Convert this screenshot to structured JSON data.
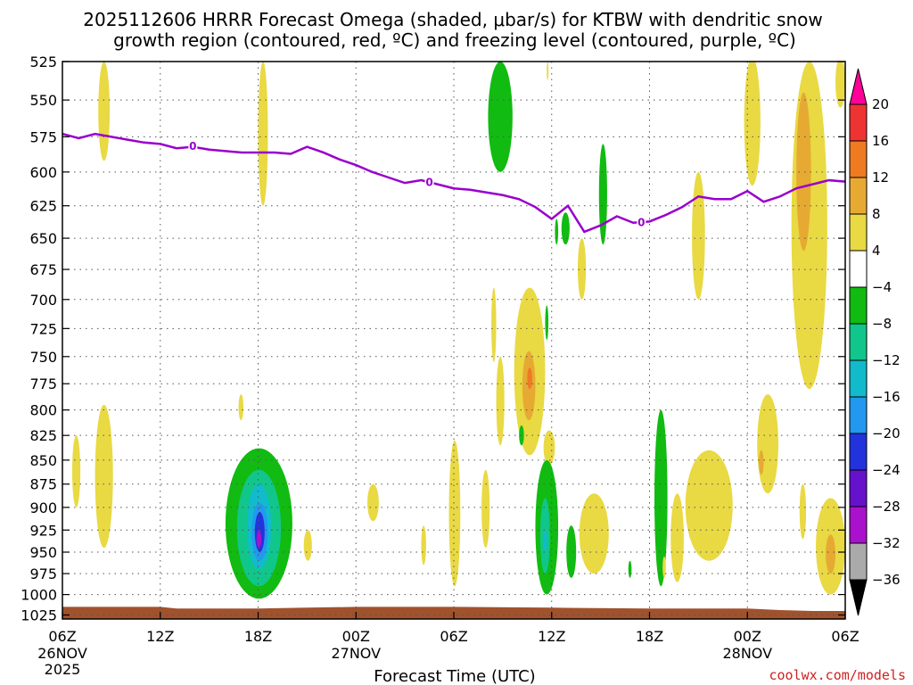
{
  "header": {
    "title_line1": "2025112606 HRRR Forecast Omega (shaded, μbar/s) for KTBW with dendritic snow",
    "title_line2": "growth region (contoured, red, ºC) and freezing level (contoured, purple, ºC)"
  },
  "credit": "coolwx.com/models",
  "colors": {
    "freezing_level": "#9900cc",
    "ground": "#a0522d",
    "credit": "#cc2222",
    "grid": "#555555"
  },
  "chart_data": {
    "type": "heatmap",
    "xlabel": "Forecast Time (UTC)",
    "ylabel": "",
    "y_scale": "log-pressure",
    "y_inverted": true,
    "ylim": [
      1030,
      525
    ],
    "xlim": [
      0,
      48
    ],
    "grid": true,
    "x_ticks": [
      {
        "hour": 0,
        "label": "06Z",
        "date": "26NOV",
        "year": "2025"
      },
      {
        "hour": 6,
        "label": "12Z"
      },
      {
        "hour": 12,
        "label": "18Z"
      },
      {
        "hour": 18,
        "label": "00Z",
        "date": "27NOV"
      },
      {
        "hour": 24,
        "label": "06Z"
      },
      {
        "hour": 30,
        "label": "12Z"
      },
      {
        "hour": 36,
        "label": "18Z"
      },
      {
        "hour": 42,
        "label": "00Z",
        "date": "28NOV"
      },
      {
        "hour": 48,
        "label": "06Z"
      }
    ],
    "y_ticks": [
      525,
      550,
      575,
      600,
      625,
      650,
      675,
      700,
      725,
      750,
      775,
      800,
      825,
      850,
      875,
      900,
      925,
      950,
      975,
      1000,
      1025
    ],
    "colorbar": {
      "labels": [
        20,
        16,
        12,
        8,
        4,
        -4,
        -8,
        -12,
        -16,
        -20,
        -24,
        -28,
        -32,
        -36
      ],
      "levels": [
        {
          "from": 20,
          "to": 24,
          "color": "#ff0099",
          "cap": "top"
        },
        {
          "from": 16,
          "to": 20,
          "color": "#ee3333"
        },
        {
          "from": 12,
          "to": 16,
          "color": "#ee7a22"
        },
        {
          "from": 8,
          "to": 12,
          "color": "#e6aa33"
        },
        {
          "from": 4,
          "to": 8,
          "color": "#e9d943"
        },
        {
          "from": -4,
          "to": 4,
          "color": "#ffffff"
        },
        {
          "from": -8,
          "to": -4,
          "color": "#11bb11"
        },
        {
          "from": -12,
          "to": -8,
          "color": "#11c68a"
        },
        {
          "from": -16,
          "to": -12,
          "color": "#11bbcc"
        },
        {
          "from": -20,
          "to": -16,
          "color": "#2299ee"
        },
        {
          "from": -24,
          "to": -20,
          "color": "#2233dd"
        },
        {
          "from": -28,
          "to": -24,
          "color": "#6611cc"
        },
        {
          "from": -32,
          "to": -28,
          "color": "#aa11cc"
        },
        {
          "from": -36,
          "to": -32,
          "color": "#aaaaaa"
        },
        {
          "from": -40,
          "to": -36,
          "color": "#000000",
          "cap": "bottom"
        }
      ]
    },
    "freezing_level": {
      "label": "0",
      "points": [
        [
          0,
          573
        ],
        [
          1,
          576
        ],
        [
          2,
          573
        ],
        [
          3,
          575
        ],
        [
          4,
          577
        ],
        [
          5,
          579
        ],
        [
          6,
          580
        ],
        [
          7,
          583
        ],
        [
          8,
          582
        ],
        [
          9,
          584
        ],
        [
          10,
          585
        ],
        [
          11,
          586
        ],
        [
          12,
          586
        ],
        [
          13,
          586
        ],
        [
          14,
          587
        ],
        [
          15,
          582
        ],
        [
          16,
          586
        ],
        [
          17,
          591
        ],
        [
          18,
          595
        ],
        [
          19,
          600
        ],
        [
          20,
          604
        ],
        [
          21,
          608
        ],
        [
          22,
          606
        ],
        [
          23,
          609
        ],
        [
          24,
          612
        ],
        [
          25,
          613
        ],
        [
          26,
          615
        ],
        [
          27,
          617
        ],
        [
          28,
          620
        ],
        [
          29,
          626
        ],
        [
          30,
          635
        ],
        [
          31,
          625
        ],
        [
          32,
          645
        ],
        [
          33,
          640
        ],
        [
          34,
          633
        ],
        [
          35,
          638
        ],
        [
          36,
          637
        ],
        [
          37,
          632
        ],
        [
          38,
          626
        ],
        [
          39,
          618
        ],
        [
          40,
          620
        ],
        [
          41,
          620
        ],
        [
          42,
          614
        ],
        [
          43,
          622
        ],
        [
          44,
          618
        ],
        [
          45,
          612
        ],
        [
          46,
          609
        ],
        [
          47,
          606
        ],
        [
          48,
          607
        ]
      ],
      "label_points": [
        [
          8,
          581
        ],
        [
          22.5,
          607
        ],
        [
          35.5,
          637
        ]
      ]
    },
    "ground": [
      [
        0,
        1015
      ],
      [
        6,
        1015
      ],
      [
        7,
        1017
      ],
      [
        12,
        1017
      ],
      [
        15,
        1016
      ],
      [
        18,
        1015
      ],
      [
        24,
        1015
      ],
      [
        30,
        1016
      ],
      [
        36,
        1017
      ],
      [
        42,
        1017
      ],
      [
        44,
        1019
      ],
      [
        46,
        1020
      ],
      [
        48,
        1020
      ]
    ],
    "omega_regions": [
      {
        "x": [
          2.2,
          2.9
        ],
        "p": [
          525,
          592
        ],
        "v": 6
      },
      {
        "x": [
          12.0,
          12.6
        ],
        "p": [
          525,
          625
        ],
        "v": 6
      },
      {
        "x": [
          26.1,
          27.6
        ],
        "p": [
          525,
          600
        ],
        "v": -6
      },
      {
        "x": [
          29.7,
          29.8
        ],
        "p": [
          525,
          537
        ],
        "v": 6
      },
      {
        "x": [
          44.7,
          46.9
        ],
        "p": [
          525,
          780
        ],
        "v": 6
      },
      {
        "x": [
          45.0,
          45.9
        ],
        "p": [
          545,
          660
        ],
        "v": 10
      },
      {
        "x": [
          41.8,
          42.8
        ],
        "p": [
          522,
          610
        ],
        "v": 6
      },
      {
        "x": [
          47.4,
          48
        ],
        "p": [
          522,
          555
        ],
        "v": 6
      },
      {
        "x": [
          38.6,
          39.4
        ],
        "p": [
          600,
          700
        ],
        "v": 6
      },
      {
        "x": [
          30.6,
          31.1
        ],
        "p": [
          630,
          655
        ],
        "v": -6
      },
      {
        "x": [
          31.6,
          32.1
        ],
        "p": [
          650,
          700
        ],
        "v": 6
      },
      {
        "x": [
          32.9,
          33.4
        ],
        "p": [
          580,
          655
        ],
        "v": -6
      },
      {
        "x": [
          30.2,
          30.4
        ],
        "p": [
          635,
          655
        ],
        "v": -6
      },
      {
        "x": [
          26.3,
          26.6
        ],
        "p": [
          690,
          755
        ],
        "v": 6
      },
      {
        "x": [
          26.6,
          27.1
        ],
        "p": [
          750,
          835
        ],
        "v": 6
      },
      {
        "x": [
          27.7,
          29.6
        ],
        "p": [
          690,
          845
        ],
        "v": 6
      },
      {
        "x": [
          28.2,
          29.0
        ],
        "p": [
          745,
          810
        ],
        "v": 10
      },
      {
        "x": [
          28.5,
          28.8
        ],
        "p": [
          760,
          780
        ],
        "v": 14
      },
      {
        "x": [
          29.5,
          30.2
        ],
        "p": [
          820,
          855
        ],
        "v": 6
      },
      {
        "x": [
          29.6,
          29.8
        ],
        "p": [
          705,
          735
        ],
        "v": -6
      },
      {
        "x": [
          28.0,
          28.3
        ],
        "p": [
          815,
          835
        ],
        "v": -6
      },
      {
        "x": [
          25.7,
          26.2
        ],
        "p": [
          860,
          945
        ],
        "v": 6
      },
      {
        "x": [
          29.0,
          30.4
        ],
        "p": [
          850,
          1000
        ],
        "v": -6
      },
      {
        "x": [
          29.3,
          29.9
        ],
        "p": [
          890,
          975
        ],
        "v": -10
      },
      {
        "x": [
          29.5,
          29.7
        ],
        "p": [
          925,
          950
        ],
        "v": -14
      },
      {
        "x": [
          30.9,
          31.5
        ],
        "p": [
          920,
          980
        ],
        "v": -6
      },
      {
        "x": [
          31.7,
          33.5
        ],
        "p": [
          885,
          975
        ],
        "v": 6
      },
      {
        "x": [
          36.3,
          37.1
        ],
        "p": [
          800,
          990
        ],
        "v": -6
      },
      {
        "x": [
          37.3,
          38.1
        ],
        "p": [
          885,
          985
        ],
        "v": 6
      },
      {
        "x": [
          38.2,
          41.1
        ],
        "p": [
          840,
          960
        ],
        "v": 6
      },
      {
        "x": [
          42.6,
          43.9
        ],
        "p": [
          785,
          885
        ],
        "v": 6
      },
      {
        "x": [
          42.7,
          43.0
        ],
        "p": [
          840,
          865
        ],
        "v": 10
      },
      {
        "x": [
          45.2,
          45.6
        ],
        "p": [
          875,
          935
        ],
        "v": 6
      },
      {
        "x": [
          46.2,
          48
        ],
        "p": [
          890,
          1000
        ],
        "v": 6
      },
      {
        "x": [
          46.8,
          47.4
        ],
        "p": [
          930,
          975
        ],
        "v": 10
      },
      {
        "x": [
          0.6,
          1.1
        ],
        "p": [
          825,
          900
        ],
        "v": 6
      },
      {
        "x": [
          2.0,
          3.1
        ],
        "p": [
          795,
          945
        ],
        "v": 6
      },
      {
        "x": [
          10.8,
          11.1
        ],
        "p": [
          785,
          810
        ],
        "v": 6
      },
      {
        "x": [
          10.0,
          14.1
        ],
        "p": [
          838,
          1005
        ],
        "v": -6
      },
      {
        "x": [
          10.7,
          13.4
        ],
        "p": [
          860,
          990
        ],
        "v": -10
      },
      {
        "x": [
          11.3,
          12.8
        ],
        "p": [
          875,
          970
        ],
        "v": -14
      },
      {
        "x": [
          11.6,
          12.6
        ],
        "p": [
          895,
          960
        ],
        "v": -18
      },
      {
        "x": [
          11.8,
          12.4
        ],
        "p": [
          905,
          950
        ],
        "v": -22
      },
      {
        "x": [
          11.9,
          12.2
        ],
        "p": [
          925,
          945
        ],
        "v": -30
      },
      {
        "x": [
          14.8,
          15.3
        ],
        "p": [
          925,
          960
        ],
        "v": 6
      },
      {
        "x": [
          18.7,
          19.4
        ],
        "p": [
          875,
          915
        ],
        "v": 6
      },
      {
        "x": [
          22.0,
          22.3
        ],
        "p": [
          920,
          965
        ],
        "v": 6
      },
      {
        "x": [
          23.7,
          24.4
        ],
        "p": [
          830,
          990
        ],
        "v": 6
      },
      {
        "x": [
          34.7,
          34.9
        ],
        "p": [
          960,
          980
        ],
        "v": -6
      },
      {
        "x": [
          36.8,
          37.0
        ],
        "p": [
          955,
          980
        ],
        "v": 6
      }
    ]
  }
}
